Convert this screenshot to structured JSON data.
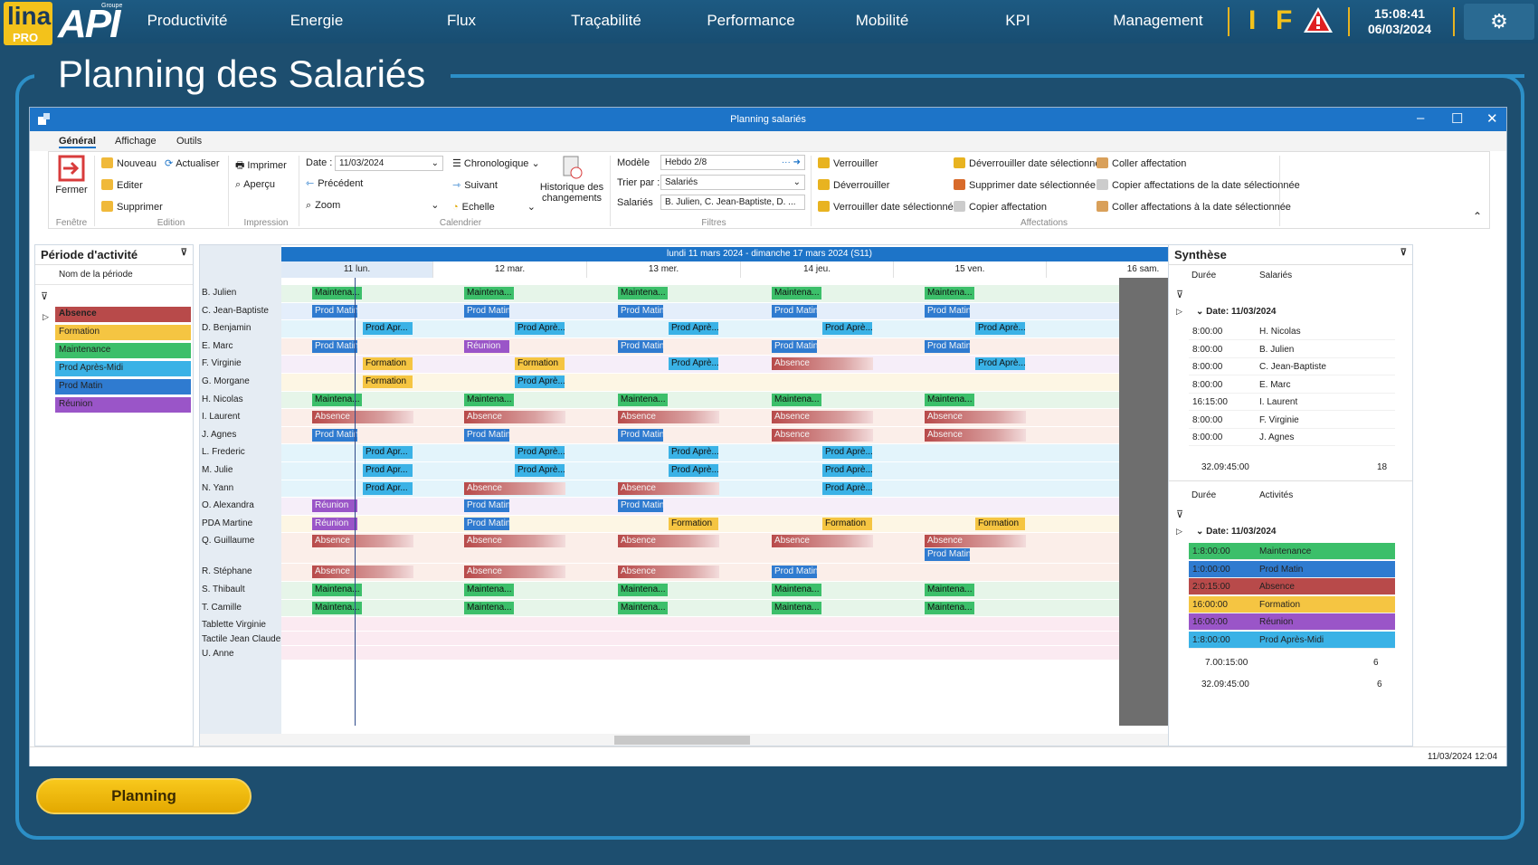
{
  "nav": {
    "logo_text": "lina",
    "logo_sub": "PRO",
    "brand": "API",
    "brand_sup": "Groupe",
    "items": [
      "Productivité",
      "Energie",
      "Flux",
      "Traçabilité",
      "Performance",
      "Mobilité",
      "KPI",
      "Management"
    ],
    "indicators": [
      "I",
      "F"
    ],
    "time": "15:08:41",
    "date": "06/03/2024"
  },
  "page_title": "Planning des Salariés",
  "window": {
    "title": "Planning salariés",
    "menu": [
      "Général",
      "Affichage",
      "Outils"
    ],
    "ribbon": {
      "fenetre": {
        "fermer": "Fermer",
        "group": "Fenêtre"
      },
      "edition": {
        "nouveau": "Nouveau",
        "editer": "Editer",
        "supprimer": "Supprimer",
        "actualiser": "Actualiser",
        "group": "Edition"
      },
      "impression": {
        "imprimer": "Imprimer",
        "apercu": "Aperçu",
        "group": "Impression"
      },
      "calendrier": {
        "date_label": "Date :",
        "date_value": "11/03/2024",
        "precedent": "Précédent",
        "suivant": "Suivant",
        "zoom": "Zoom",
        "chronologique": "Chronologique",
        "echelle": "Echelle",
        "historique_1": "Historique des",
        "historique_2": "changements",
        "group": "Calendrier"
      },
      "filtres": {
        "modele_label": "Modèle",
        "modele_value": "Hebdo 2/8",
        "trier_label": "Trier par :",
        "trier_value": "Salariés",
        "salaries_label": "Salariés",
        "salaries_value": "B. Julien, C. Jean-Baptiste, D. ...",
        "group": "Filtres"
      },
      "affectations": {
        "verrouiller": "Verrouiller",
        "deverrouiller": "Déverrouiller",
        "verrouiller_date": "Verrouiller date sélectionnée",
        "deverrouiller_date": "Déverrouiller date sélectionnée",
        "supprimer_date": "Supprimer date sélectionnée",
        "copier": "Copier affectation",
        "coller": "Coller affectation",
        "copier_date": "Copier affectations de la date sélectionnée",
        "coller_date": "Coller affectations à la date sélectionnée",
        "group": "Affectations"
      }
    },
    "left_panel": {
      "title": "Période d'activité",
      "column": "Nom de la période",
      "items": [
        {
          "label": "Absence",
          "color": "#b84a4a"
        },
        {
          "label": "Formation",
          "color": "#f5c542"
        },
        {
          "label": "Maintenance",
          "color": "#3cbf6a"
        },
        {
          "label": "Prod Après-Midi",
          "color": "#3ab2e6"
        },
        {
          "label": "Prod Matin",
          "color": "#2f7bd0"
        },
        {
          "label": "Réunion",
          "color": "#9a55c8"
        }
      ]
    },
    "schedule": {
      "week": "lundi 11 mars 2024 - dimanche 17 mars 2024 (S11)",
      "days": [
        "11 lun.",
        "12 mar.",
        "13 mer.",
        "14 jeu.",
        "15 ven.",
        "16 sam."
      ],
      "employees": [
        {
          "name": "B. Julien",
          "bg": "#e6f5e9",
          "slots": [
            [
              "Maintena...",
              "M"
            ],
            [
              "Maintena...",
              "M"
            ],
            [
              "Maintena...",
              "M"
            ],
            [
              "Maintena...",
              "M"
            ],
            [
              "Maintena...",
              "M"
            ]
          ]
        },
        {
          "name": "C. Jean-Baptiste",
          "bg": "#e4eefb",
          "slots": [
            [
              "Prod Matin",
              "P"
            ],
            [
              "Prod Matin",
              "P"
            ],
            [
              "Prod Matin",
              "P"
            ],
            [
              "Prod Matin",
              "P"
            ],
            [
              "Prod Matin",
              "P"
            ]
          ]
        },
        {
          "name": "D. Benjamin",
          "bg": "#e3f4fb",
          "slots": [
            [
              "Prod Apr...",
              "A"
            ],
            [
              "Prod Aprè...",
              "A"
            ],
            [
              "Prod Aprè...",
              "A"
            ],
            [
              "Prod Aprè...",
              "A"
            ],
            [
              "Prod Aprè...",
              "A"
            ]
          ]
        },
        {
          "name": "E. Marc",
          "bg": "#fbeee9",
          "slots": [
            [
              "Prod Matin",
              "P"
            ],
            [
              "Réunion",
              "R"
            ],
            [
              "Prod Matin",
              "P"
            ],
            [
              "Prod Matin",
              "P"
            ],
            [
              "Prod Matin",
              "P"
            ]
          ]
        },
        {
          "name": "F. Virginie",
          "bg": "#f6eef9",
          "slots": [
            [
              "Formation",
              "F"
            ],
            [
              "Formation",
              "F"
            ],
            [
              "Prod Aprè...",
              "A"
            ],
            [
              "Absence",
              "X"
            ],
            [
              "Prod Aprè...",
              "A"
            ]
          ]
        },
        {
          "name": "G. Morgane",
          "bg": "#fdf6e4",
          "slots": [
            [
              "Formation",
              "F"
            ],
            [
              "Prod Aprè...",
              "A"
            ],
            null,
            null,
            null
          ]
        },
        {
          "name": "H. Nicolas",
          "bg": "#e6f5e9",
          "slots": [
            [
              "Maintena...",
              "M"
            ],
            [
              "Maintena...",
              "M"
            ],
            [
              "Maintena...",
              "M"
            ],
            [
              "Maintena...",
              "M"
            ],
            [
              "Maintena...",
              "M"
            ]
          ]
        },
        {
          "name": "I. Laurent",
          "bg": "#fbeee9",
          "slots": [
            [
              "Absence",
              "X"
            ],
            [
              "Absence",
              "X"
            ],
            [
              "Absence",
              "X"
            ],
            [
              "Absence",
              "X"
            ],
            [
              "Absence",
              "X"
            ]
          ]
        },
        {
          "name": "J. Agnes",
          "bg": "#fbeee9",
          "slots": [
            [
              "Prod Matin",
              "P"
            ],
            [
              "Prod Matin",
              "P"
            ],
            [
              "Prod Matin",
              "P"
            ],
            [
              "Absence",
              "X"
            ],
            [
              "Absence",
              "X"
            ]
          ]
        },
        {
          "name": "L. Frederic",
          "bg": "#e3f4fb",
          "slots": [
            [
              "Prod Apr...",
              "A"
            ],
            [
              "Prod Aprè...",
              "A"
            ],
            [
              "Prod Aprè...",
              "A"
            ],
            [
              "Prod Aprè...",
              "A"
            ],
            null
          ]
        },
        {
          "name": "M. Julie",
          "bg": "#e3f4fb",
          "slots": [
            [
              "Prod Apr...",
              "A"
            ],
            [
              "Prod Aprè...",
              "A"
            ],
            [
              "Prod Aprè...",
              "A"
            ],
            [
              "Prod Aprè...",
              "A"
            ],
            null
          ]
        },
        {
          "name": "N. Yann",
          "bg": "#e3f4fb",
          "slots": [
            [
              "Prod Apr...",
              "A"
            ],
            [
              "Absence",
              "X"
            ],
            [
              "Absence",
              "X"
            ],
            [
              "Prod Aprè...",
              "A"
            ],
            null
          ]
        },
        {
          "name": "O. Alexandra",
          "bg": "#f6eef9",
          "slots": [
            [
              "Réunion",
              "R"
            ],
            [
              "Prod Matin",
              "P"
            ],
            [
              "Prod Matin",
              "P"
            ],
            null,
            null
          ]
        },
        {
          "name": "PDA Martine",
          "bg": "#fdf6e4",
          "slots": [
            [
              "Réunion",
              "R"
            ],
            [
              "Prod Matin",
              "P"
            ],
            [
              "Formation",
              "F"
            ],
            [
              "Formation",
              "F"
            ],
            [
              "Formation",
              "F"
            ]
          ]
        },
        {
          "name": "Q. Guillaume",
          "bg": "#fbeee9",
          "tall": true,
          "slots": [
            [
              "Absence",
              "X"
            ],
            [
              "Absence",
              "X"
            ],
            [
              "Absence",
              "X"
            ],
            [
              "Absence",
              "X"
            ],
            [
              "Absence",
              "X"
            ]
          ],
          "extra": [
            "Prod Matin",
            "P"
          ]
        },
        {
          "name": "R. Stéphane",
          "bg": "#fbeee9",
          "slots": [
            [
              "Absence",
              "X"
            ],
            [
              "Absence",
              "X"
            ],
            [
              "Absence",
              "X"
            ],
            [
              "Prod Matin",
              "P"
            ],
            null
          ]
        },
        {
          "name": "S. Thibault",
          "bg": "#e6f5e9",
          "slots": [
            [
              "Maintena...",
              "M"
            ],
            [
              "Maintena...",
              "M"
            ],
            [
              "Maintena...",
              "M"
            ],
            [
              "Maintena...",
              "M"
            ],
            [
              "Maintena...",
              "M"
            ]
          ]
        },
        {
          "name": "T. Camille",
          "bg": "#e6f5e9",
          "slots": [
            [
              "Maintena...",
              "M"
            ],
            [
              "Maintena...",
              "M"
            ],
            [
              "Maintena...",
              "M"
            ],
            [
              "Maintena...",
              "M"
            ],
            [
              "Maintena...",
              "M"
            ]
          ]
        },
        {
          "name": "Tablette Virginie",
          "bg": "#fbeaf1",
          "slots": [
            null,
            null,
            null,
            null,
            null
          ]
        },
        {
          "name": "Tactile Jean Claude",
          "bg": "#fbeaf1",
          "slots": [
            null,
            null,
            null,
            null,
            null
          ]
        },
        {
          "name": "U. Anne",
          "bg": "#fbeaf1",
          "slots": [
            null,
            null,
            null,
            null,
            null
          ]
        }
      ]
    },
    "synthese": {
      "title": "Synthèse",
      "t1_cols": [
        "Durée",
        "Salariés"
      ],
      "t1_group": "Date: 11/03/2024",
      "t1_rows": [
        [
          "8:00:00",
          "H. Nicolas"
        ],
        [
          "8:00:00",
          "B. Julien"
        ],
        [
          "8:00:00",
          "C. Jean-Baptiste"
        ],
        [
          "8:00:00",
          "E. Marc"
        ],
        [
          "16:15:00",
          "I. Laurent"
        ],
        [
          "8:00:00",
          "F. Virginie"
        ],
        [
          "8:00:00",
          "J. Agnes"
        ]
      ],
      "t1_total": "32.09:45:00",
      "t1_count": "18",
      "t2_cols": [
        "Durée",
        "Activités"
      ],
      "t2_group": "Date: 11/03/2024",
      "t2_rows": [
        [
          "1:8:00:00",
          "Maintenance",
          "#3cbf6a"
        ],
        [
          "1:0:00:00",
          "Prod Matin",
          "#2f7bd0"
        ],
        [
          "2:0:15:00",
          "Absence",
          "#b84a4a"
        ],
        [
          "16:00:00",
          "Formation",
          "#f5c542"
        ],
        [
          "16:00:00",
          "Réunion",
          "#9a55c8"
        ],
        [
          "1:8:00:00",
          "Prod Après-Midi",
          "#3ab2e6"
        ]
      ],
      "t2_sub": "7.00:15:00",
      "t2_sub_count": "6",
      "t2_total": "32.09:45:00",
      "t2_count": "6"
    },
    "status_right": "11/03/2024 12:04"
  },
  "planning_button": "Planning",
  "colors": {
    "M": "#3cbf6a",
    "P": "#2f7bd0",
    "A": "#3ab2e6",
    "R": "#9a55c8",
    "F": "#f5c542",
    "X": "#b84a4a"
  }
}
